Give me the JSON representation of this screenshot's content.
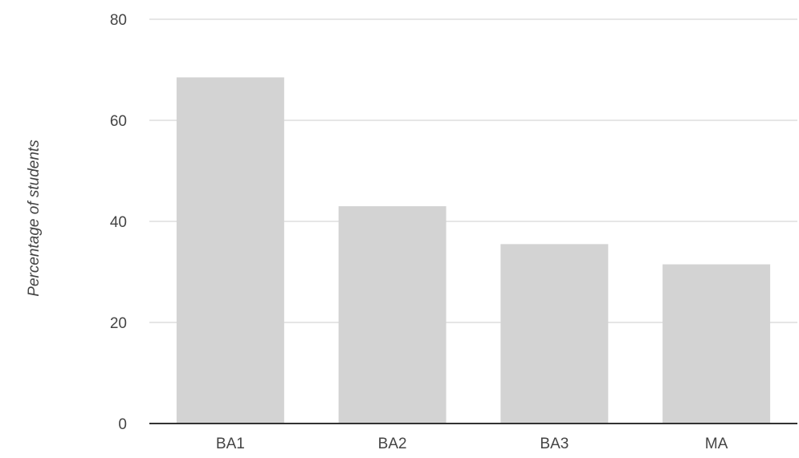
{
  "chart_data": {
    "type": "bar",
    "title": "",
    "xlabel": "",
    "ylabel": "Percentage of students",
    "categories": [
      "BA1",
      "BA2",
      "BA3",
      "MA"
    ],
    "values": [
      68.5,
      43,
      35.5,
      31.5
    ],
    "ylim": [
      0,
      80
    ],
    "yticks": [
      0,
      20,
      40,
      60,
      80
    ],
    "grid": true,
    "legend": "none",
    "colors": {
      "bar": "#d3d3d3",
      "grid": "#dddddd",
      "baseline": "#333333",
      "text": "#444444"
    }
  }
}
